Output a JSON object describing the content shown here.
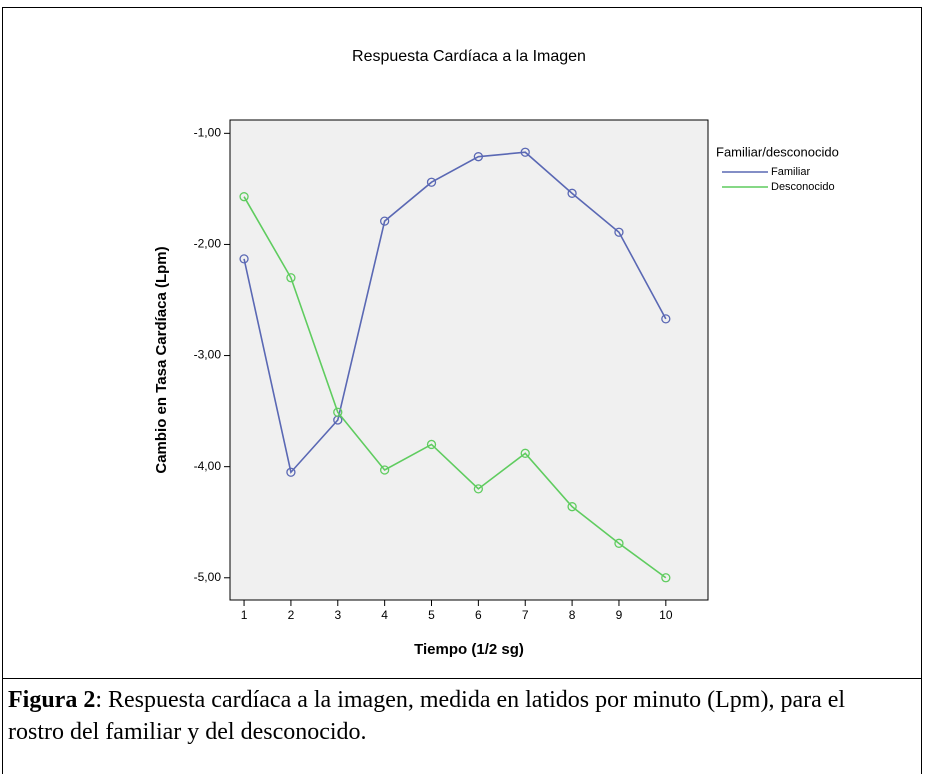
{
  "chart_data": {
    "type": "line",
    "title": "Respuesta Cardíaca a la Imagen",
    "xlabel": "Tiempo (1/2 sg)",
    "ylabel": "Cambio en Tasa Cardíaca (Lpm)",
    "x": [
      1,
      2,
      3,
      4,
      5,
      6,
      7,
      8,
      9,
      10
    ],
    "series": [
      {
        "name": "Familiar",
        "color": "#5a68b4",
        "values": [
          -2.13,
          -4.05,
          -3.58,
          -1.79,
          -1.44,
          -1.21,
          -1.17,
          -1.54,
          -1.89,
          -2.67
        ]
      },
      {
        "name": "Desconocido",
        "color": "#5fcc5f",
        "values": [
          -1.57,
          -2.3,
          -3.51,
          -4.03,
          -3.8,
          -4.2,
          -3.88,
          -4.36,
          -4.69,
          -5.0
        ]
      }
    ],
    "legend_title": "Familiar/desconocido",
    "xlim": [
      0.7,
      10.9
    ],
    "xticks": [
      1,
      2,
      3,
      4,
      5,
      6,
      7,
      8,
      9,
      10
    ],
    "ylim": [
      -5.2,
      -0.88
    ],
    "yticks": [
      {
        "value": -5,
        "label": "-5,00"
      },
      {
        "value": -4,
        "label": "-4,00"
      },
      {
        "value": -3,
        "label": "-3,00"
      },
      {
        "value": -2,
        "label": "-2,00"
      },
      {
        "value": -1,
        "label": "-1,00"
      }
    ]
  },
  "caption": {
    "label": "Figura 2",
    "text": ": Respuesta cardíaca a la imagen, medida en latidos por minuto (Lpm), para el rostro del familiar y del desconocido."
  }
}
